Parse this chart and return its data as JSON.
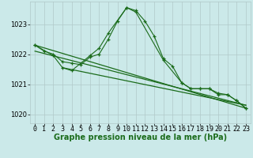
{
  "background_color": "#cbe9e9",
  "grid_color": "#b0c8c8",
  "line_color": "#1a6b1a",
  "xlabel": "Graphe pression niveau de la mer (hPa)",
  "xlabel_fontsize": 7,
  "tick_fontsize": 6,
  "ylim": [
    1019.7,
    1023.75
  ],
  "yticks": [
    1020,
    1021,
    1022,
    1023
  ],
  "xticks": [
    0,
    1,
    2,
    3,
    4,
    5,
    6,
    7,
    8,
    9,
    10,
    11,
    12,
    13,
    14,
    15,
    16,
    17,
    18,
    19,
    20,
    21,
    22,
    23
  ],
  "series1_x": [
    0,
    1,
    2,
    3,
    4,
    5,
    6,
    7,
    8,
    9,
    10,
    11,
    12,
    13,
    14,
    15,
    16,
    17,
    18,
    19,
    20,
    21,
    22,
    23
  ],
  "series1_y": [
    1022.3,
    1022.1,
    1022.0,
    1021.75,
    1021.7,
    1021.65,
    1021.9,
    1022.0,
    1022.5,
    1023.1,
    1023.55,
    1023.45,
    1023.1,
    1022.6,
    1021.85,
    1021.6,
    1021.05,
    1020.85,
    1020.85,
    1020.85,
    1020.7,
    1020.65,
    1020.45,
    1020.2
  ],
  "series2_x": [
    0,
    2,
    3,
    4,
    6,
    7,
    8,
    10,
    11,
    14,
    16,
    17,
    18,
    19,
    20,
    21,
    22,
    23
  ],
  "series2_y": [
    1022.3,
    1021.95,
    1021.55,
    1021.45,
    1021.95,
    1022.2,
    1022.7,
    1023.55,
    1023.4,
    1021.8,
    1021.05,
    1020.85,
    1020.85,
    1020.85,
    1020.65,
    1020.65,
    1020.45,
    1020.2
  ],
  "series3_x": [
    0,
    23
  ],
  "series3_y": [
    1022.3,
    1020.2
  ],
  "series4_x": [
    0,
    23
  ],
  "series4_y": [
    1022.1,
    1020.3
  ],
  "series5_x": [
    3,
    23
  ],
  "series5_y": [
    1021.55,
    1020.3
  ]
}
